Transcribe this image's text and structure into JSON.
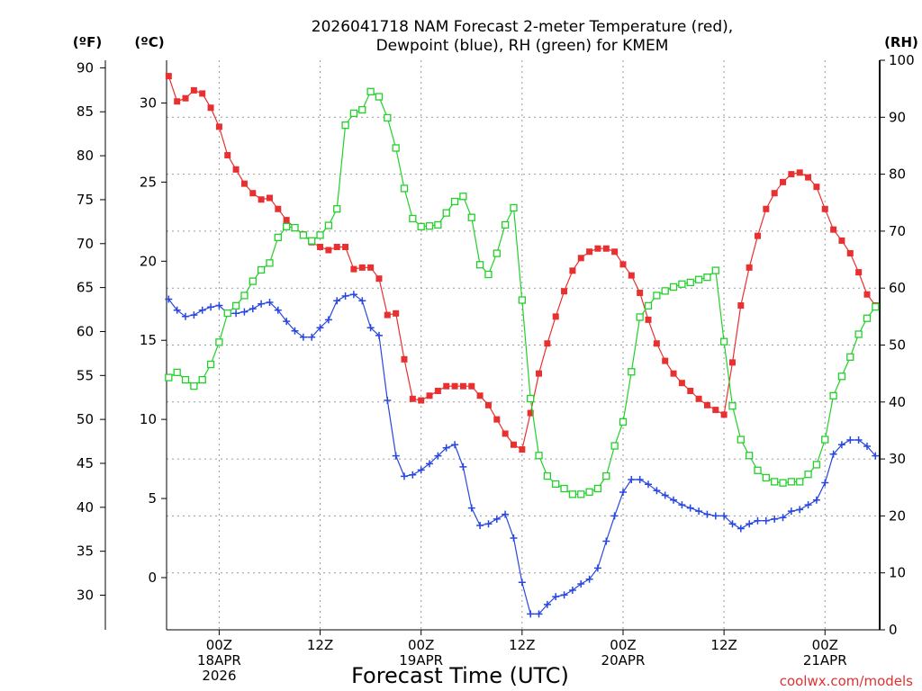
{
  "chart_data": {
    "type": "line",
    "title_lines": [
      "2026041718 NAM Forecast 2-meter Temperature (red),",
      "Dewpoint (blue), RH (green) for KMEM"
    ],
    "xlabel": "Forecast Time (UTC)",
    "credit": "coolwx.com/models",
    "unit_labels": {
      "fahrenheit": "(ºF)",
      "celsius": "(ºC)",
      "rh": "(RH)"
    },
    "grid": true,
    "x_hours_range": [
      -6.25,
      78.5
    ],
    "x_note": "x values are hours since 2026-04-18 00Z",
    "x_ticks": [
      {
        "hour": 0,
        "lines": [
          "00Z",
          "18APR",
          "2026"
        ]
      },
      {
        "hour": 12,
        "lines": [
          "12Z"
        ]
      },
      {
        "hour": 24,
        "lines": [
          "00Z",
          "19APR"
        ]
      },
      {
        "hour": 36,
        "lines": [
          "12Z"
        ]
      },
      {
        "hour": 48,
        "lines": [
          "00Z",
          "20APR"
        ]
      },
      {
        "hour": 60,
        "lines": [
          "12Z"
        ]
      },
      {
        "hour": 72,
        "lines": [
          "00Z",
          "21APR"
        ]
      }
    ],
    "celsius_axis": {
      "range": [
        -3.3,
        32.7
      ],
      "ticks": [
        0,
        5,
        10,
        15,
        20,
        25,
        30
      ]
    },
    "fahrenheit_axis": {
      "range": [
        26.06,
        90.86
      ],
      "ticks": [
        30,
        35,
        40,
        45,
        50,
        55,
        60,
        65,
        70,
        75,
        80,
        85,
        90
      ]
    },
    "rh_axis": {
      "range": [
        0,
        100
      ],
      "ticks": [
        0,
        10,
        20,
        30,
        40,
        50,
        60,
        70,
        80,
        90,
        100
      ]
    },
    "series": [
      {
        "name": "Temperature",
        "units": "C",
        "color": "#e83030",
        "marker": "filled-square",
        "x": [
          -6,
          -5,
          -4,
          -3,
          -2,
          -1,
          0,
          1,
          2,
          3,
          4,
          5,
          6,
          7,
          8,
          9,
          10,
          11,
          12,
          13,
          14,
          15,
          16,
          17,
          18,
          19,
          20,
          21,
          22,
          23,
          24,
          25,
          26,
          27,
          28,
          29,
          30,
          31,
          32,
          33,
          34,
          35,
          36,
          37,
          38,
          39,
          40,
          41,
          42,
          43,
          44,
          45,
          46,
          47,
          48,
          49,
          50,
          51,
          52,
          53,
          54,
          55,
          56,
          57,
          58,
          59,
          60,
          61,
          62,
          63,
          64,
          65,
          66,
          67,
          68,
          69,
          70,
          71,
          72,
          73,
          74,
          75,
          76,
          77,
          78
        ],
        "values": [
          31.7,
          30.1,
          30.3,
          30.8,
          30.6,
          29.7,
          28.5,
          26.7,
          25.8,
          24.9,
          24.3,
          23.9,
          24.0,
          23.3,
          22.6,
          22.1,
          21.7,
          21.2,
          20.9,
          20.7,
          20.9,
          20.9,
          19.5,
          19.6,
          19.6,
          18.9,
          16.6,
          16.7,
          13.8,
          11.3,
          11.2,
          11.5,
          11.8,
          12.1,
          12.1,
          12.1,
          12.1,
          11.5,
          10.9,
          10.0,
          9.1,
          8.4,
          8.1,
          10.4,
          12.9,
          14.8,
          16.5,
          18.1,
          19.4,
          20.2,
          20.6,
          20.8,
          20.8,
          20.6,
          19.8,
          19.1,
          18.0,
          16.3,
          14.8,
          13.7,
          12.9,
          12.3,
          11.8,
          11.3,
          10.9,
          10.6,
          10.3,
          13.6,
          17.2,
          19.6,
          21.6,
          23.3,
          24.3,
          25.0,
          25.5,
          25.6,
          25.3,
          24.7,
          23.3,
          22.0,
          21.3,
          20.5,
          19.3,
          17.9,
          17.2
        ]
      },
      {
        "name": "Dewpoint",
        "units": "C",
        "color": "#2846e0",
        "marker": "plus",
        "x": [
          -6,
          -5,
          -4,
          -3,
          -2,
          -1,
          0,
          1,
          2,
          3,
          4,
          5,
          6,
          7,
          8,
          9,
          10,
          11,
          12,
          13,
          14,
          15,
          16,
          17,
          18,
          19,
          20,
          21,
          22,
          23,
          24,
          25,
          26,
          27,
          28,
          29,
          30,
          31,
          32,
          33,
          34,
          35,
          36,
          37,
          38,
          39,
          40,
          41,
          42,
          43,
          44,
          45,
          46,
          47,
          48,
          49,
          50,
          51,
          52,
          53,
          54,
          55,
          56,
          57,
          58,
          59,
          60,
          61,
          62,
          63,
          64,
          65,
          66,
          67,
          68,
          69,
          70,
          71,
          72,
          73,
          74,
          75,
          76,
          77,
          78
        ],
        "values": [
          17.6,
          16.9,
          16.5,
          16.6,
          16.9,
          17.1,
          17.2,
          16.7,
          16.7,
          16.8,
          17.0,
          17.3,
          17.4,
          16.9,
          16.2,
          15.6,
          15.2,
          15.2,
          15.8,
          16.3,
          17.5,
          17.8,
          17.9,
          17.5,
          15.8,
          15.3,
          11.2,
          7.7,
          6.4,
          6.5,
          6.8,
          7.2,
          7.7,
          8.2,
          8.4,
          7.0,
          4.4,
          3.3,
          3.4,
          3.7,
          4.0,
          2.5,
          -0.3,
          -2.3,
          -2.3,
          -1.7,
          -1.2,
          -1.1,
          -0.8,
          -0.4,
          -0.1,
          0.6,
          2.3,
          3.9,
          5.4,
          6.2,
          6.2,
          5.9,
          5.5,
          5.2,
          4.9,
          4.6,
          4.4,
          4.2,
          4.0,
          3.9,
          3.9,
          3.4,
          3.1,
          3.4,
          3.6,
          3.6,
          3.7,
          3.8,
          4.2,
          4.3,
          4.6,
          4.9,
          6.0,
          7.8,
          8.4,
          8.7,
          8.7,
          8.3,
          7.7
        ]
      },
      {
        "name": "RH",
        "units": "%",
        "color": "#22d02a",
        "marker": "open-square",
        "x": [
          -6,
          -5,
          -4,
          -3,
          -2,
          -1,
          0,
          1,
          2,
          3,
          4,
          5,
          6,
          7,
          8,
          9,
          10,
          11,
          12,
          13,
          14,
          15,
          16,
          17,
          18,
          19,
          20,
          21,
          22,
          23,
          24,
          25,
          26,
          27,
          28,
          29,
          30,
          31,
          32,
          33,
          34,
          35,
          36,
          37,
          38,
          39,
          40,
          41,
          42,
          43,
          44,
          45,
          46,
          47,
          48,
          49,
          50,
          51,
          52,
          53,
          54,
          55,
          56,
          57,
          58,
          59,
          60,
          61,
          62,
          63,
          64,
          65,
          66,
          67,
          68,
          69,
          70,
          71,
          72,
          73,
          74,
          75,
          76,
          77,
          78
        ],
        "values": [
          44.3,
          45.2,
          43.9,
          42.8,
          43.9,
          46.6,
          50.5,
          55.6,
          56.9,
          58.7,
          61.2,
          63.2,
          64.4,
          68.9,
          70.8,
          70.6,
          69.3,
          68.3,
          69.3,
          71.0,
          73.9,
          88.6,
          90.7,
          91.3,
          94.5,
          93.6,
          89.9,
          84.6,
          77.5,
          72.2,
          70.8,
          70.9,
          71.1,
          73.2,
          75.2,
          76.1,
          72.4,
          64.1,
          62.4,
          66.1,
          71.1,
          74.1,
          57.9,
          40.6,
          30.6,
          27.0,
          25.6,
          24.8,
          23.8,
          23.8,
          24.2,
          24.8,
          27.0,
          32.3,
          36.5,
          45.3,
          54.9,
          56.9,
          58.7,
          59.5,
          60.2,
          60.7,
          61.0,
          61.5,
          61.9,
          63.1,
          50.6,
          39.3,
          33.4,
          30.6,
          28.0,
          26.7,
          26.0,
          25.8,
          26.0,
          26.0,
          27.3,
          29.0,
          33.4,
          41.1,
          44.5,
          47.9,
          51.9,
          54.7,
          56.7
        ]
      }
    ]
  }
}
